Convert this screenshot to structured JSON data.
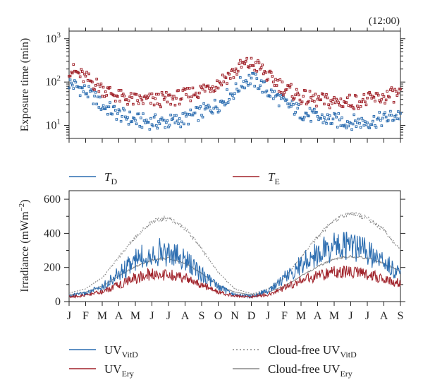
{
  "figure": {
    "time_label": "(12:00)",
    "top": {
      "ylabel": "Exposure time (min)",
      "ytick_labels": [
        {
          "base": "10",
          "exp": "3"
        },
        {
          "base": "10",
          "exp": "2"
        },
        {
          "base": "10",
          "exp": "1"
        }
      ],
      "legend": [
        {
          "main": "T",
          "sub": "D",
          "color": "#2c6db0"
        },
        {
          "main": "T",
          "sub": "E",
          "color": "#a0222a"
        }
      ]
    },
    "bottom": {
      "ylabel": "Irradiance (mWm",
      "ylabel_exp": "−2",
      "ylabel_close": ")",
      "ytick_labels": [
        "0",
        "200",
        "400",
        "600"
      ],
      "month_labels": [
        "J",
        "F",
        "M",
        "A",
        "M",
        "J",
        "J",
        "A",
        "S",
        "O",
        "N",
        "D",
        "J",
        "F",
        "M",
        "A",
        "M",
        "J",
        "J",
        "A",
        "S"
      ],
      "legend": [
        {
          "main": "UV",
          "sub": "VitD",
          "color": "#2c6db0",
          "style": "solid"
        },
        {
          "main": "Cloud-free UV",
          "sub": "VitD",
          "color": "#888888",
          "style": "dotted"
        },
        {
          "main": "UV",
          "sub": "Ery",
          "color": "#a0222a",
          "style": "solid"
        },
        {
          "main": "Cloud-free UV",
          "sub": "Ery",
          "color": "#888888",
          "style": "solid"
        }
      ]
    }
  },
  "chart_data": [
    {
      "type": "scatter",
      "yscale": "log",
      "ylim": [
        5,
        1500
      ],
      "x_units": "months from January of first year",
      "xlim": [
        0,
        20
      ],
      "ylabel": "Exposure time (min)",
      "series": [
        {
          "name": "T_D",
          "color": "#2c6db0",
          "x": [
            0,
            1,
            2,
            3,
            4,
            5,
            6,
            7,
            8,
            9,
            10,
            10.5,
            11,
            11.5,
            12,
            13,
            14,
            15,
            16,
            17,
            18,
            19,
            20
          ],
          "values": [
            95,
            60,
            28,
            18,
            13,
            12,
            12,
            14,
            20,
            30,
            60,
            100,
            120,
            90,
            60,
            32,
            20,
            15,
            13,
            12,
            12,
            14,
            18
          ]
        },
        {
          "name": "T_E",
          "color": "#a0222a",
          "x": [
            0,
            1,
            2,
            3,
            4,
            5,
            6,
            7,
            8,
            9,
            10,
            10.5,
            11,
            11.5,
            12,
            13,
            14,
            15,
            16,
            17,
            18,
            19,
            20
          ],
          "values": [
            200,
            120,
            70,
            45,
            38,
            38,
            40,
            48,
            65,
            95,
            170,
            250,
            260,
            220,
            130,
            70,
            45,
            38,
            35,
            35,
            38,
            45,
            55
          ]
        }
      ]
    },
    {
      "type": "line",
      "ylim": [
        0,
        650
      ],
      "x_units": "months from January of first year",
      "xlim": [
        0,
        20
      ],
      "ylabel": "Irradiance (mWm−2)",
      "series": [
        {
          "name": "UV_VitD",
          "color": "#2c6db0",
          "style": "solid",
          "x": [
            0,
            1,
            2,
            3,
            4,
            5,
            6,
            7,
            8,
            9,
            10,
            11,
            12,
            13,
            14,
            15,
            16,
            17,
            18,
            19,
            20
          ],
          "values": [
            45,
            60,
            110,
            210,
            310,
            380,
            370,
            310,
            210,
            110,
            50,
            40,
            80,
            180,
            280,
            370,
            420,
            420,
            370,
            300,
            200
          ]
        },
        {
          "name": "Cloud-free UV_VitD",
          "color": "#888888",
          "style": "dotted",
          "x": [
            0,
            1,
            2,
            3,
            4,
            5,
            6,
            7,
            8,
            9,
            10,
            11,
            12,
            13,
            14,
            15,
            16,
            17,
            18,
            19,
            20
          ],
          "values": [
            50,
            75,
            140,
            260,
            380,
            470,
            490,
            430,
            310,
            170,
            75,
            45,
            75,
            140,
            260,
            380,
            480,
            520,
            490,
            420,
            300
          ]
        },
        {
          "name": "UV_Ery",
          "color": "#a0222a",
          "style": "solid",
          "x": [
            0,
            1,
            2,
            3,
            4,
            5,
            6,
            7,
            8,
            9,
            10,
            11,
            12,
            13,
            14,
            15,
            16,
            17,
            18,
            19,
            20
          ],
          "values": [
            35,
            45,
            70,
            120,
            170,
            200,
            195,
            170,
            120,
            70,
            40,
            35,
            50,
            100,
            150,
            190,
            210,
            210,
            195,
            170,
            130
          ]
        },
        {
          "name": "Cloud-free UV_Ery",
          "color": "#888888",
          "style": "solid",
          "x": [
            0,
            1,
            2,
            3,
            4,
            5,
            6,
            7,
            8,
            9,
            10,
            11,
            12,
            13,
            14,
            15,
            16,
            17,
            18,
            19,
            20
          ],
          "values": [
            40,
            55,
            90,
            150,
            205,
            245,
            255,
            225,
            165,
            95,
            55,
            40,
            55,
            90,
            150,
            205,
            250,
            265,
            255,
            225,
            175
          ]
        }
      ]
    }
  ]
}
